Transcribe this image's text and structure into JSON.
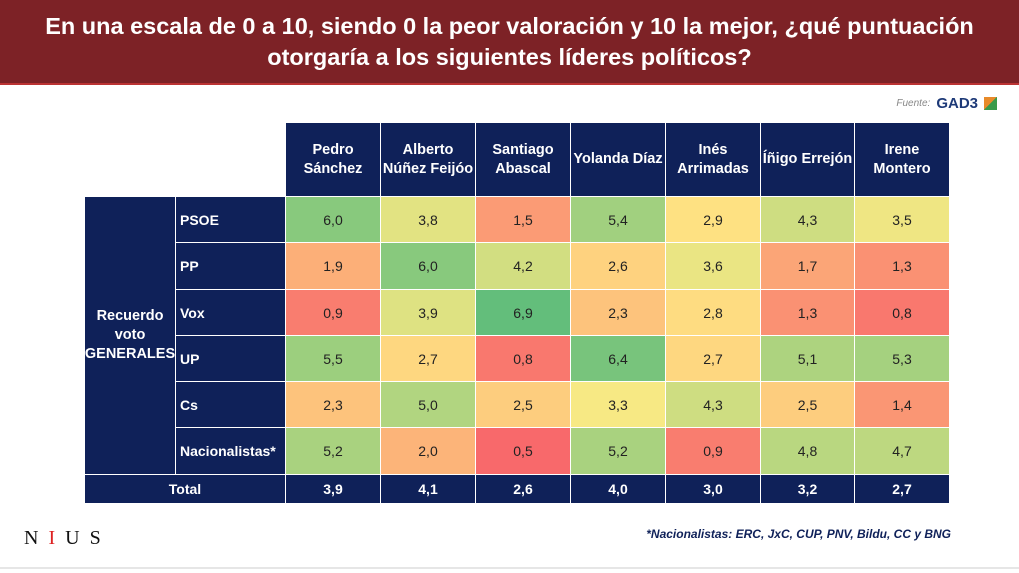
{
  "title": "En una escala de 0 a 10, siendo 0 la peor valoración y 10 la mejor, ¿qué puntuación otorgaría a los siguientes líderes políticos?",
  "source": {
    "label": "Fuente:",
    "logo": "GAD3"
  },
  "footnote": "*Nacionalistas: ERC, JxC, CUP, PNV, Bildu, CC y BNG",
  "brand": "NIUS",
  "colors": {
    "low": "#f8696b",
    "mid": "#ffeb84",
    "high": "#63be7b",
    "header": "#0f2159",
    "title_bar": "#7d2226"
  },
  "chart_data": {
    "type": "heatmap",
    "title": "En una escala de 0 a 10, siendo 0 la peor valoración y 10 la mejor, ¿qué puntuación otorgaría a los siguientes líderes políticos?",
    "row_group_label": "Recuerdo voto GENERALES",
    "columns": [
      "Pedro Sánchez",
      "Alberto Núñez Feijóo",
      "Santiago Abascal",
      "Yolanda Díaz",
      "Inés Arrimadas",
      "Íñigo Errejón",
      "Irene Montero"
    ],
    "rows": [
      {
        "label": "PSOE",
        "values": [
          "6,0",
          "3,8",
          "1,5",
          "5,4",
          "2,9",
          "4,3",
          "3,5"
        ]
      },
      {
        "label": "PP",
        "values": [
          "1,9",
          "6,0",
          "4,2",
          "2,6",
          "3,6",
          "1,7",
          "1,3"
        ]
      },
      {
        "label": "Vox",
        "values": [
          "0,9",
          "3,9",
          "6,9",
          "2,3",
          "2,8",
          "1,3",
          "0,8"
        ]
      },
      {
        "label": "UP",
        "values": [
          "5,5",
          "2,7",
          "0,8",
          "6,4",
          "2,7",
          "5,1",
          "5,3"
        ]
      },
      {
        "label": "Cs",
        "values": [
          "2,3",
          "5,0",
          "2,5",
          "3,3",
          "4,3",
          "2,5",
          "1,4"
        ]
      },
      {
        "label": "Nacionalistas*",
        "values": [
          "5,2",
          "2,0",
          "0,5",
          "5,2",
          "0,9",
          "4,8",
          "4,7"
        ]
      }
    ],
    "total": {
      "label": "Total",
      "values": [
        "3,9",
        "4,1",
        "2,6",
        "4,0",
        "3,0",
        "3,2",
        "2,7"
      ]
    }
  }
}
